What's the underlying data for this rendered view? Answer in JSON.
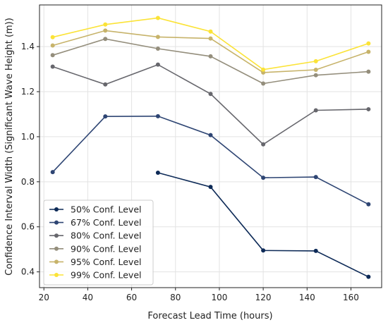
{
  "chart_data": {
    "type": "line",
    "xlabel": "Forecast Lead Time (hours)",
    "ylabel": "Confidence Interval Width (Significant Wave Height (m))",
    "xlim": [
      18,
      174
    ],
    "ylim": [
      0.33,
      1.585
    ],
    "xticks": [
      20,
      40,
      60,
      80,
      100,
      120,
      140,
      160
    ],
    "yticks": [
      0.4,
      0.6,
      0.8,
      1.0,
      1.2,
      1.4
    ],
    "xtick_labels": [
      "20",
      "40",
      "60",
      "80",
      "100",
      "120",
      "140",
      "160"
    ],
    "ytick_labels": [
      "0.4",
      "0.6",
      "0.8",
      "1.0",
      "1.2",
      "1.4"
    ],
    "grid": true,
    "legend_position": "lower-left",
    "x": [
      24,
      48,
      72,
      96,
      120,
      144,
      168
    ],
    "series": [
      {
        "name": "50% Conf. Level",
        "color": "#0d2a57",
        "values": [
          null,
          null,
          0.84,
          0.777,
          0.495,
          0.493,
          0.378
        ]
      },
      {
        "name": "67% Conf. Level",
        "color": "#2e4573",
        "values": [
          0.843,
          1.09,
          1.091,
          1.007,
          0.818,
          0.821,
          0.7
        ]
      },
      {
        "name": "80% Conf. Level",
        "color": "#67676d",
        "values": [
          1.311,
          1.232,
          1.32,
          1.19,
          0.966,
          1.117,
          1.122
        ]
      },
      {
        "name": "90% Conf. Level",
        "color": "#948e7c",
        "values": [
          1.362,
          1.434,
          1.391,
          1.357,
          1.236,
          1.273,
          1.289
        ]
      },
      {
        "name": "95% Conf. Level",
        "color": "#c7b36a",
        "values": [
          1.405,
          1.471,
          1.443,
          1.436,
          1.285,
          1.297,
          1.377
        ]
      },
      {
        "name": "99% Conf. Level",
        "color": "#fbe337",
        "values": [
          1.442,
          1.498,
          1.527,
          1.467,
          1.298,
          1.335,
          1.414
        ]
      }
    ]
  }
}
